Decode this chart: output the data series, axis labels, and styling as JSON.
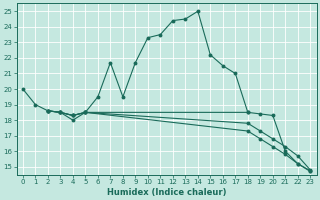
{
  "xlabel": "Humidex (Indice chaleur)",
  "xlim": [
    -0.5,
    23.5
  ],
  "ylim": [
    14.5,
    25.5
  ],
  "xticks": [
    0,
    1,
    2,
    3,
    4,
    5,
    6,
    7,
    8,
    9,
    10,
    11,
    12,
    13,
    14,
    15,
    16,
    17,
    18,
    19,
    20,
    21,
    22,
    23
  ],
  "yticks": [
    15,
    16,
    17,
    18,
    19,
    20,
    21,
    22,
    23,
    24,
    25
  ],
  "bg_color": "#c5e8e0",
  "line_color": "#1a6b5a",
  "grid_color": "#b0d8d0",
  "line1_x": [
    0,
    1,
    2,
    3,
    4,
    5,
    6,
    7,
    8,
    9,
    10,
    11,
    12,
    13,
    14,
    15,
    16,
    17,
    18
  ],
  "line1_y": [
    20.0,
    19.0,
    18.6,
    18.5,
    18.0,
    18.5,
    19.5,
    21.7,
    19.5,
    21.7,
    23.3,
    23.5,
    24.4,
    24.5,
    25.0,
    22.2,
    21.5,
    21.0,
    18.5
  ],
  "line2_x": [
    2,
    3,
    4,
    5,
    18,
    19,
    20,
    21,
    22,
    23
  ],
  "line2_y": [
    18.6,
    18.5,
    18.3,
    18.5,
    18.5,
    18.4,
    18.3,
    16.0,
    15.2,
    14.7
  ],
  "line3_x": [
    2,
    3,
    4,
    5,
    18,
    19,
    20,
    21,
    22,
    23
  ],
  "line3_y": [
    18.6,
    18.5,
    18.3,
    18.5,
    17.3,
    16.8,
    16.3,
    15.8,
    15.2,
    14.75
  ],
  "line4_x": [
    2,
    3,
    4,
    5,
    18,
    19,
    20,
    21,
    22,
    23
  ],
  "line4_y": [
    18.6,
    18.5,
    18.3,
    18.5,
    17.8,
    17.3,
    16.8,
    16.3,
    15.7,
    14.8
  ],
  "xlabel_fontsize": 6,
  "tick_fontsize": 5,
  "linewidth": 0.8,
  "markersize": 1.8
}
